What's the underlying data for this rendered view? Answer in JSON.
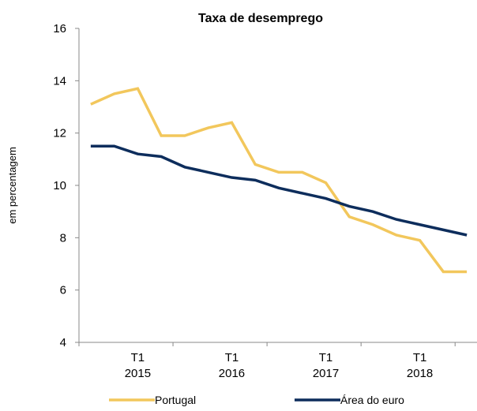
{
  "chart_data": {
    "type": "line",
    "title": "Taxa de desemprego",
    "y_label": "em percentagem",
    "categories": [
      null,
      null,
      "T1 2015",
      null,
      null,
      null,
      "T1 2016",
      null,
      null,
      null,
      "T1 2017",
      null,
      null,
      null,
      "T1 2018",
      null,
      null
    ],
    "series": [
      {
        "name": "Portugal",
        "color": "#f2c75c",
        "values": [
          13.1,
          13.5,
          13.7,
          11.9,
          11.9,
          12.2,
          12.4,
          10.8,
          10.5,
          10.5,
          10.1,
          8.8,
          8.5,
          8.1,
          7.9,
          6.7,
          6.7
        ]
      },
      {
        "name": "Área do euro",
        "color": "#0d2d5c",
        "values": [
          11.5,
          11.5,
          11.2,
          11.1,
          10.7,
          10.5,
          10.3,
          10.2,
          9.9,
          9.7,
          9.5,
          9.2,
          9.0,
          8.7,
          8.5,
          8.3,
          8.1
        ]
      }
    ],
    "ylim": [
      4,
      16
    ],
    "yticks": [
      4,
      6,
      8,
      10,
      12,
      14,
      16
    ],
    "grid": false,
    "legend": "bottom"
  }
}
